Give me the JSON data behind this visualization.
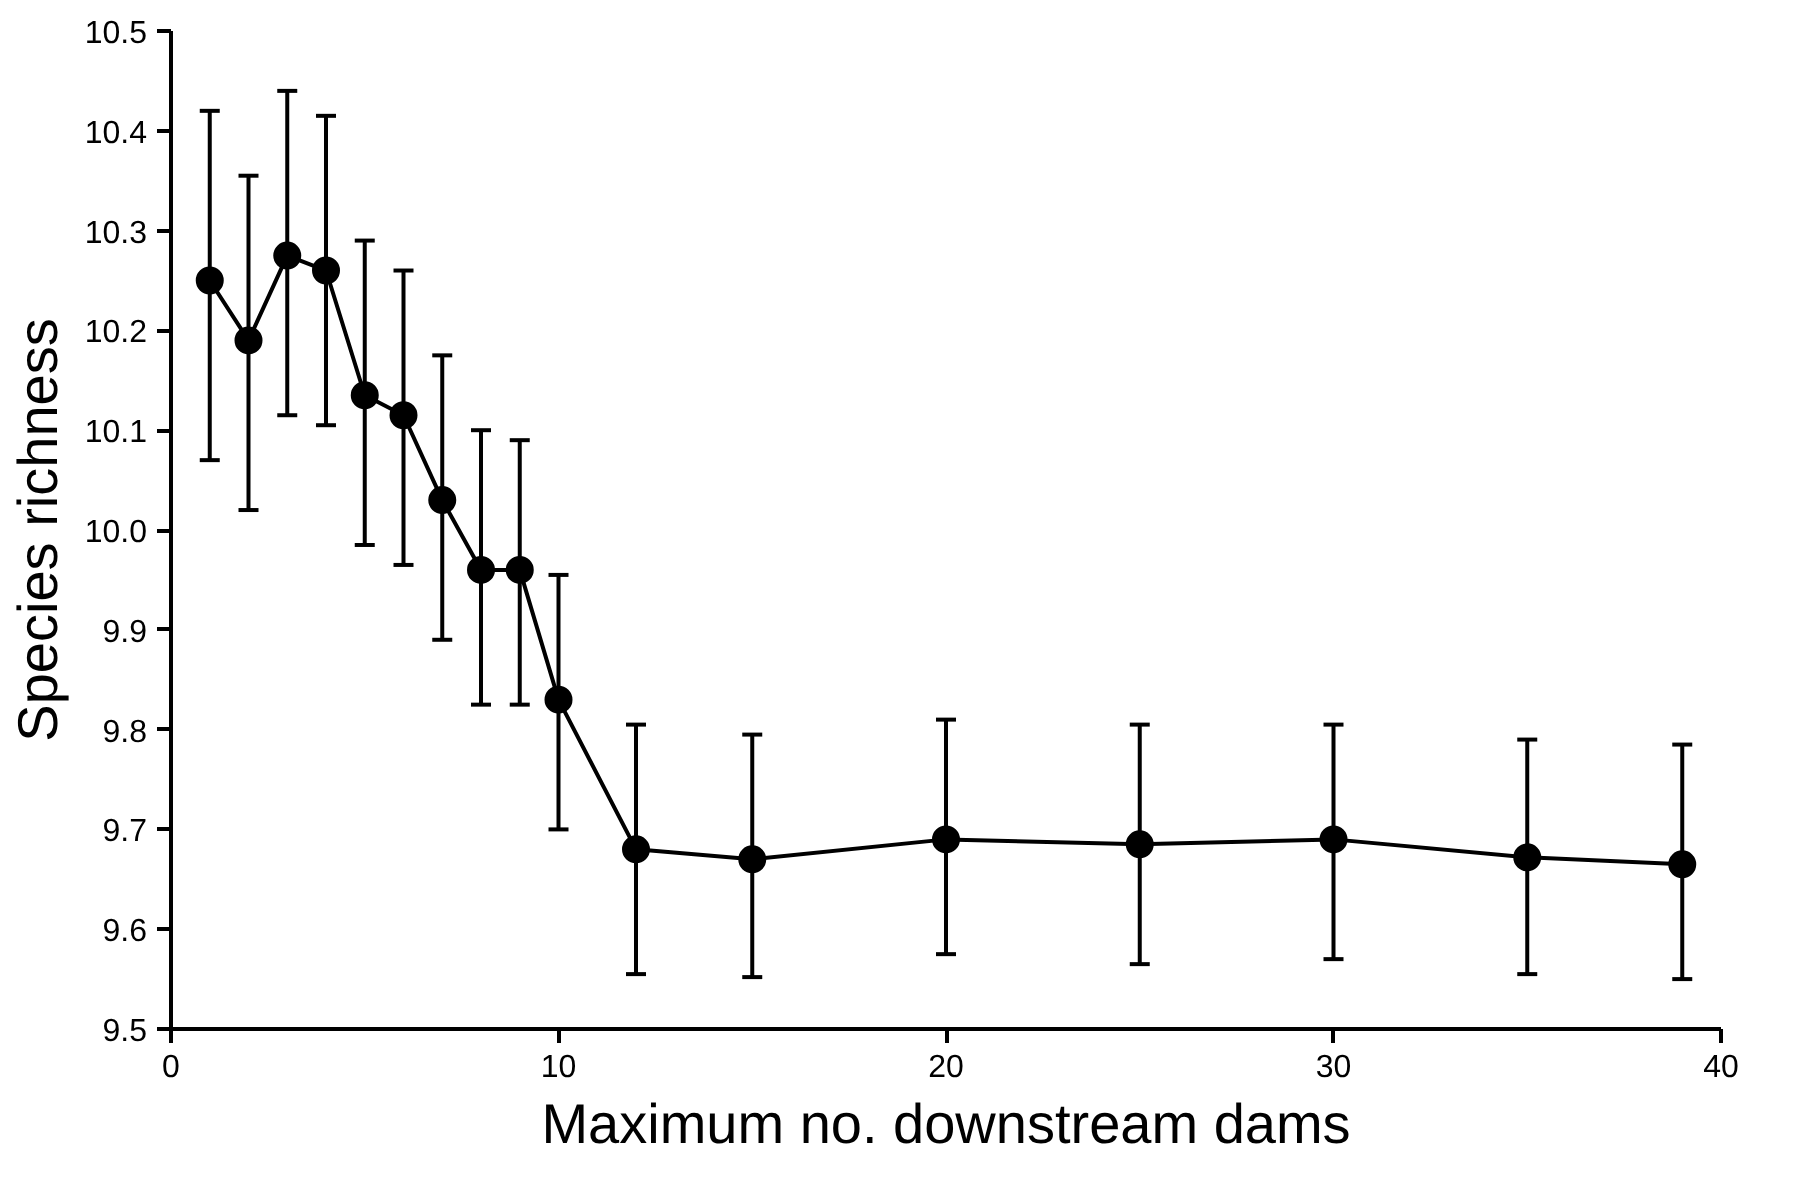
{
  "chart_data": {
    "type": "line",
    "xlabel": "Maximum no. downstream dams",
    "ylabel": "Species richness",
    "x": [
      1,
      2,
      3,
      4,
      5,
      6,
      7,
      8,
      9,
      10,
      12,
      15,
      20,
      25,
      30,
      35,
      39
    ],
    "values": [
      10.25,
      10.19,
      10.275,
      10.26,
      10.135,
      10.115,
      10.03,
      9.96,
      9.96,
      9.83,
      9.68,
      9.67,
      9.69,
      9.685,
      9.69,
      9.672,
      9.665
    ],
    "errors": [
      [
        10.07,
        10.42
      ],
      [
        10.02,
        10.355
      ],
      [
        10.115,
        10.44
      ],
      [
        10.105,
        10.415
      ],
      [
        9.985,
        10.29
      ],
      [
        9.965,
        10.26
      ],
      [
        9.89,
        10.175
      ],
      [
        9.825,
        10.1
      ],
      [
        9.825,
        10.09
      ],
      [
        9.7,
        9.955
      ],
      [
        9.555,
        9.805
      ],
      [
        9.552,
        9.795
      ],
      [
        9.575,
        9.81
      ],
      [
        9.565,
        9.805
      ],
      [
        9.57,
        9.805
      ],
      [
        9.555,
        9.79
      ],
      [
        9.55,
        9.785
      ]
    ],
    "color": "#000000",
    "xlim": [
      0,
      40
    ],
    "xticks": [
      0,
      10,
      20,
      30,
      40
    ],
    "ylim": [
      9.5,
      10.5
    ],
    "yticks": [
      {
        "value": 9.5,
        "label": "9.5"
      },
      {
        "value": 9.6,
        "label": "9.6"
      },
      {
        "value": 9.7,
        "label": "9.7"
      },
      {
        "value": 9.8,
        "label": "9.8"
      },
      {
        "value": 9.9,
        "label": "9.9"
      },
      {
        "value": 10.0,
        "label": "10.0"
      },
      {
        "value": 10.1,
        "label": "10.1"
      },
      {
        "value": 10.2,
        "label": "10.2"
      },
      {
        "value": 10.3,
        "label": "10.3"
      },
      {
        "value": 10.4,
        "label": "10.4"
      },
      {
        "value": 10.5,
        "label": "10.5"
      }
    ],
    "marker": "circle",
    "line_style": "solid",
    "grid": false
  }
}
